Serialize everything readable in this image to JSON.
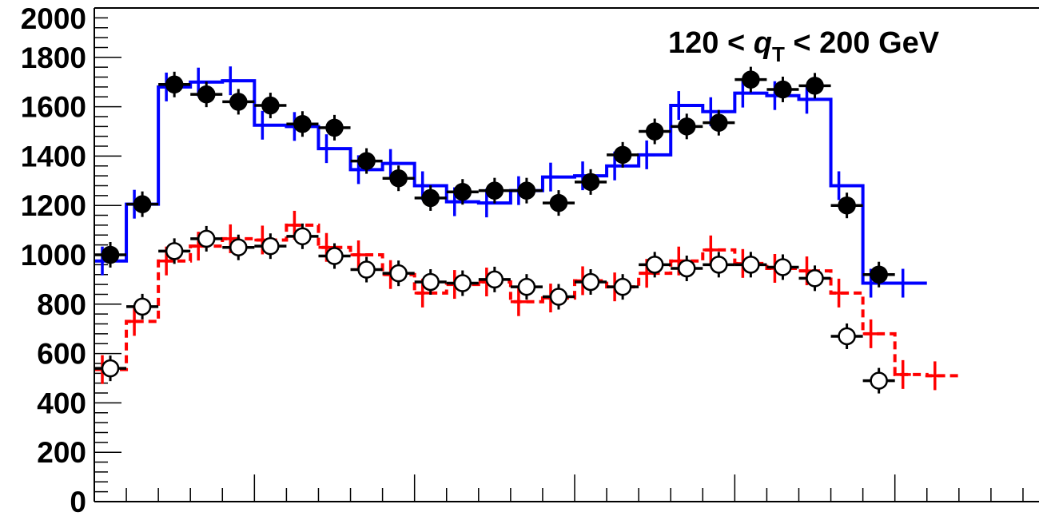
{
  "chart_data": {
    "type": "line",
    "annotation": {
      "prefix": "120 < ",
      "var": "q",
      "sub": "T",
      "suffix": " < 200 GeV"
    },
    "ylim": [
      0,
      2000
    ],
    "y_ticks": [
      "0",
      "200",
      "400",
      "600",
      "800",
      "1000",
      "1200",
      "1400",
      "1600",
      "1800",
      "2000"
    ],
    "n_bins": 30,
    "bins_shown": 29.5,
    "grid": false,
    "legend": "none",
    "colors": {
      "upper_hist": "#0000ff",
      "lower_hist": "#ff0000",
      "data": "#000000"
    },
    "series": [
      {
        "kind": "histogram-solid",
        "color_key": "upper_hist",
        "values": [
          975,
          1205,
          1680,
          1700,
          1705,
          1525,
          1520,
          1430,
          1345,
          1370,
          1280,
          1215,
          1210,
          1260,
          1315,
          1320,
          1360,
          1405,
          1605,
          1580,
          1655,
          1645,
          1630,
          1280,
          885,
          885
        ]
      },
      {
        "kind": "histogram-dashed",
        "color_key": "lower_hist",
        "values": [
          535,
          730,
          975,
          1035,
          1065,
          1060,
          1120,
          1030,
          1000,
          920,
          845,
          880,
          890,
          810,
          825,
          895,
          870,
          925,
          975,
          1020,
          965,
          945,
          935,
          845,
          680,
          515,
          510
        ]
      },
      {
        "kind": "points-filled",
        "values": [
          1000,
          1205,
          1690,
          1650,
          1620,
          1605,
          1530,
          1515,
          1380,
          1310,
          1230,
          1255,
          1260,
          1260,
          1210,
          1295,
          1405,
          1500,
          1520,
          1535,
          1710,
          1670,
          1685,
          1200,
          920
        ]
      },
      {
        "kind": "points-open",
        "values": [
          540,
          790,
          1015,
          1065,
          1030,
          1035,
          1075,
          995,
          940,
          925,
          890,
          885,
          900,
          870,
          830,
          890,
          870,
          960,
          945,
          960,
          960,
          950,
          905,
          670,
          490
        ]
      }
    ]
  }
}
